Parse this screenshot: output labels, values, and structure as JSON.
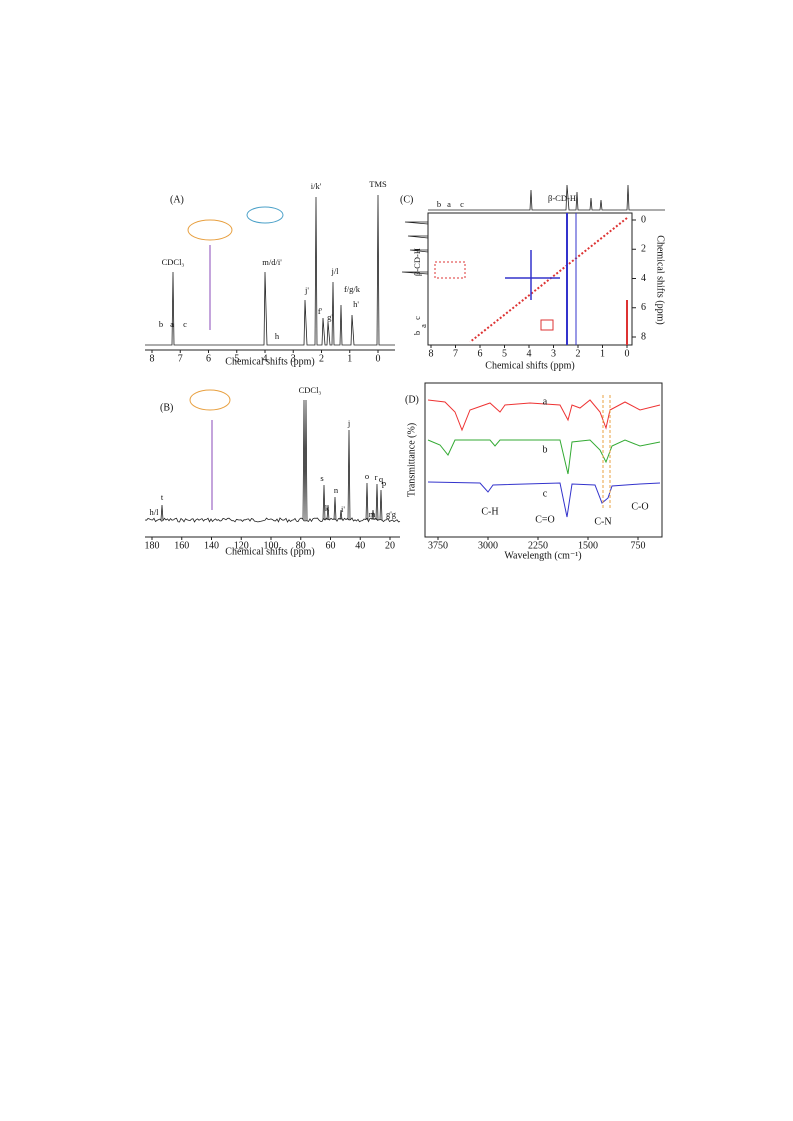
{
  "panels": [
    {
      "label": "(A)",
      "xlabel": "Chemical shifts (ppm)",
      "xticks": [
        "8",
        "7",
        "6",
        "5",
        "4",
        "3",
        "2",
        "1",
        "0"
      ],
      "peak_labels": [
        "i/k'",
        "TMS",
        "CDCl₃",
        "m/d/i'",
        "j/l",
        "f/g/k",
        "j'",
        "f'",
        "g'",
        "h'",
        "h",
        "b",
        "a",
        "c"
      ]
    },
    {
      "label": "(B)",
      "xlabel": "Chemical shifts (ppm)",
      "xticks": [
        "180",
        "160",
        "140",
        "120",
        "100",
        "80",
        "60",
        "40",
        "20"
      ],
      "peak_labels": [
        "CDCl₃",
        "s",
        "k",
        "n",
        "i'",
        "j",
        "o",
        "r",
        "q",
        "p",
        "m",
        "g'g",
        "h/l",
        "t"
      ]
    },
    {
      "label": "(C)",
      "xlabel": "Chemical shifts (ppm)",
      "ylabel": "Chemical shifts (ppm)",
      "xticks": [
        "8",
        "7",
        "6",
        "5",
        "4",
        "3",
        "2",
        "1",
        "0"
      ],
      "yticks": [
        "0",
        "2",
        "4",
        "6",
        "8"
      ],
      "peak_labels": [
        "b",
        "a",
        "c",
        "β-CD-H",
        "β-CD-H",
        "b",
        "a",
        "c"
      ]
    },
    {
      "label": "(D)",
      "xlabel": "Wavelength (cm⁻¹)",
      "ylabel": "Transmittance (%)",
      "xticks": [
        "3750",
        "3000",
        "2250",
        "1500",
        "750"
      ],
      "curve_labels": [
        "a",
        "b",
        "c"
      ],
      "peak_labels": [
        "C-H",
        "C=O",
        "C-N",
        "C-O"
      ]
    }
  ]
}
